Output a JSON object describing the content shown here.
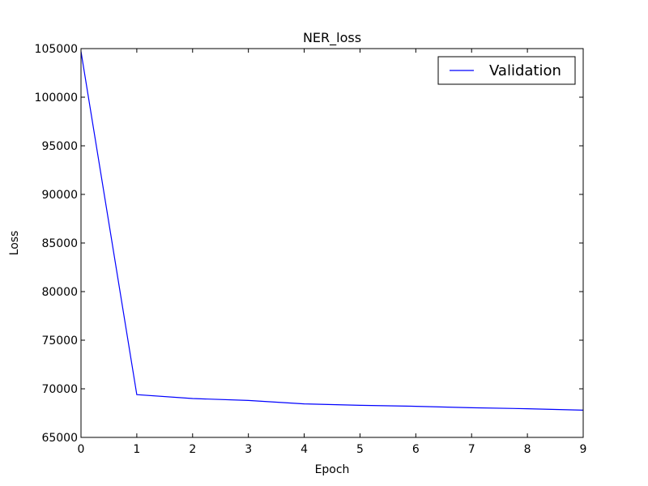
{
  "chart_data": {
    "type": "line",
    "title": "NER_loss",
    "xlabel": "Epoch",
    "ylabel": "Loss",
    "xlim": [
      0,
      9
    ],
    "ylim": [
      65000,
      105000
    ],
    "x_ticks": [
      0,
      1,
      2,
      3,
      4,
      5,
      6,
      7,
      8,
      9
    ],
    "y_ticks": [
      65000,
      70000,
      75000,
      80000,
      85000,
      90000,
      95000,
      100000,
      105000
    ],
    "grid": false,
    "legend_position": "top-right",
    "series": [
      {
        "name": "Validation",
        "color": "#0000ff",
        "x": [
          0,
          1,
          2,
          3,
          4,
          5,
          6,
          7,
          8,
          9
        ],
        "y": [
          104700,
          69400,
          69000,
          68800,
          68450,
          68300,
          68200,
          68050,
          67950,
          67800
        ]
      }
    ]
  }
}
